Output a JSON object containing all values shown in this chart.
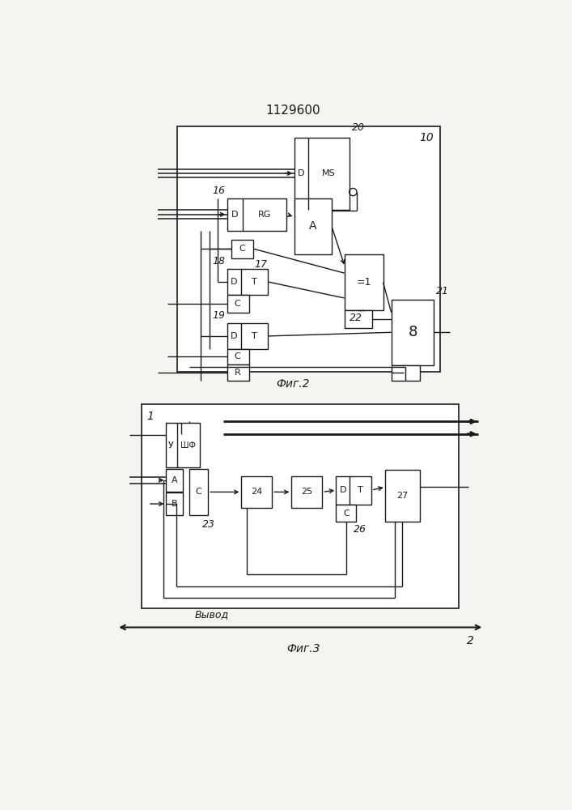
{
  "title": "1129600",
  "fig2_label": "Фиг.2",
  "fig3_label": "Фиг.3",
  "bg_color": "#f5f5f0",
  "line_color": "#1a1a1a"
}
